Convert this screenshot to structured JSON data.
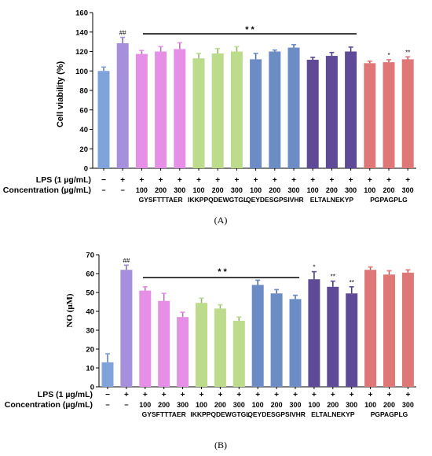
{
  "chart_data": [
    {
      "panel_label": "(A)",
      "type": "bar",
      "ylabel": "Cell viability (%)",
      "ylim": [
        0,
        160
      ],
      "yticks": [
        0,
        20,
        40,
        60,
        80,
        100,
        120,
        140,
        160
      ],
      "grid": false,
      "significance_label": "* *",
      "row_labels": {
        "lps": "LPS (1 µg/mL)",
        "concentration": "Concentration (µg/mL)"
      },
      "bars": [
        {
          "lps": "−",
          "conc": "−",
          "value": 100,
          "error": 4,
          "color": "#7fa3db",
          "annotation": ""
        },
        {
          "lps": "+",
          "conc": "−",
          "value": 128.5,
          "error": 6,
          "color": "#a68fdc",
          "annotation": "##"
        },
        {
          "lps": "+",
          "conc": "100",
          "value": 117.5,
          "error": 3.5,
          "color": "#e68fe6",
          "annotation": ""
        },
        {
          "lps": "+",
          "conc": "200",
          "value": 120,
          "error": 5,
          "color": "#e68fe6",
          "annotation": ""
        },
        {
          "lps": "+",
          "conc": "300",
          "value": 122.5,
          "error": 6.5,
          "color": "#e68fe6",
          "annotation": ""
        },
        {
          "lps": "+",
          "conc": "100",
          "value": 113,
          "error": 5,
          "color": "#bcdc8c",
          "annotation": ""
        },
        {
          "lps": "+",
          "conc": "200",
          "value": 118,
          "error": 5,
          "color": "#bcdc8c",
          "annotation": ""
        },
        {
          "lps": "+",
          "conc": "300",
          "value": 120,
          "error": 5,
          "color": "#bcdc8c",
          "annotation": ""
        },
        {
          "lps": "+",
          "conc": "100",
          "value": 112,
          "error": 6,
          "color": "#6b8cc4",
          "annotation": ""
        },
        {
          "lps": "+",
          "conc": "200",
          "value": 120,
          "error": 1.5,
          "color": "#6b8cc4",
          "annotation": ""
        },
        {
          "lps": "+",
          "conc": "300",
          "value": 124,
          "error": 3,
          "color": "#6b8cc4",
          "annotation": ""
        },
        {
          "lps": "+",
          "conc": "100",
          "value": 111.5,
          "error": 2.5,
          "color": "#5e4a96",
          "annotation": ""
        },
        {
          "lps": "+",
          "conc": "200",
          "value": 115.5,
          "error": 3.5,
          "color": "#5e4a96",
          "annotation": ""
        },
        {
          "lps": "+",
          "conc": "300",
          "value": 120,
          "error": 4.5,
          "color": "#5e4a96",
          "annotation": ""
        },
        {
          "lps": "+",
          "conc": "100",
          "value": 108,
          "error": 2,
          "color": "#e07777",
          "annotation": ""
        },
        {
          "lps": "+",
          "conc": "200",
          "value": 109,
          "error": 2.5,
          "color": "#e07777",
          "annotation": "*"
        },
        {
          "lps": "+",
          "conc": "300",
          "value": 112,
          "error": 2.5,
          "color": "#e07777",
          "annotation": "**"
        }
      ],
      "groups": [
        {
          "name": "GYSFTTTAER"
        },
        {
          "name": "IKKPPQDEWGTGL"
        },
        {
          "name": "QEYDESGPSIVHR"
        },
        {
          "name": "ELTALNEKYP"
        },
        {
          "name": "PGPAGPLG"
        }
      ]
    },
    {
      "panel_label": "(B)",
      "type": "bar",
      "ylabel": "NO (μM)",
      "ylim": [
        0,
        70
      ],
      "yticks": [
        0,
        10,
        20,
        30,
        40,
        50,
        60,
        70
      ],
      "grid": false,
      "significance_label": "* *",
      "row_labels": {
        "lps": "LPS (1 µg/mL)",
        "concentration": "Concentration (µg/mL)"
      },
      "bars": [
        {
          "lps": "−",
          "conc": "−",
          "value": 13,
          "error": 4.5,
          "color": "#7fa3db",
          "annotation": ""
        },
        {
          "lps": "+",
          "conc": "−",
          "value": 62,
          "error": 2.5,
          "color": "#a68fdc",
          "annotation": "##"
        },
        {
          "lps": "+",
          "conc": "100",
          "value": 51,
          "error": 2,
          "color": "#e68fe6",
          "annotation": ""
        },
        {
          "lps": "+",
          "conc": "200",
          "value": 45.5,
          "error": 4,
          "color": "#e68fe6",
          "annotation": ""
        },
        {
          "lps": "+",
          "conc": "300",
          "value": 37,
          "error": 2.5,
          "color": "#e68fe6",
          "annotation": ""
        },
        {
          "lps": "+",
          "conc": "100",
          "value": 44.5,
          "error": 2.5,
          "color": "#bcdc8c",
          "annotation": ""
        },
        {
          "lps": "+",
          "conc": "200",
          "value": 41.5,
          "error": 2,
          "color": "#bcdc8c",
          "annotation": ""
        },
        {
          "lps": "+",
          "conc": "300",
          "value": 35,
          "error": 2,
          "color": "#bcdc8c",
          "annotation": ""
        },
        {
          "lps": "+",
          "conc": "100",
          "value": 54,
          "error": 2.5,
          "color": "#6b8cc4",
          "annotation": ""
        },
        {
          "lps": "+",
          "conc": "200",
          "value": 49.5,
          "error": 2,
          "color": "#6b8cc4",
          "annotation": ""
        },
        {
          "lps": "+",
          "conc": "300",
          "value": 46.5,
          "error": 2,
          "color": "#6b8cc4",
          "annotation": ""
        },
        {
          "lps": "+",
          "conc": "100",
          "value": 57,
          "error": 4,
          "color": "#5e4a96",
          "annotation": "*"
        },
        {
          "lps": "+",
          "conc": "200",
          "value": 53,
          "error": 3,
          "color": "#5e4a96",
          "annotation": "**"
        },
        {
          "lps": "+",
          "conc": "300",
          "value": 49.5,
          "error": 3.5,
          "color": "#5e4a96",
          "annotation": "**"
        },
        {
          "lps": "+",
          "conc": "100",
          "value": 62,
          "error": 1.5,
          "color": "#e07777",
          "annotation": ""
        },
        {
          "lps": "+",
          "conc": "200",
          "value": 59.5,
          "error": 2,
          "color": "#e07777",
          "annotation": ""
        },
        {
          "lps": "+",
          "conc": "300",
          "value": 60.5,
          "error": 1.5,
          "color": "#e07777",
          "annotation": ""
        }
      ],
      "groups": [
        {
          "name": "GYSFTTTAER"
        },
        {
          "name": "IKKPPQDEWGTGL"
        },
        {
          "name": "QEYDESGPSIVHR"
        },
        {
          "name": "ELTALNEKYP"
        },
        {
          "name": "PGPAGPLG"
        }
      ]
    }
  ]
}
